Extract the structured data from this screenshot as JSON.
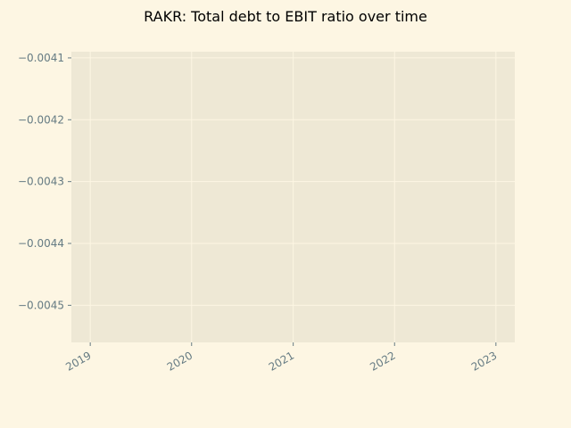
{
  "chart_data": {
    "type": "line",
    "title": "RAKR: Total debt to EBIT ratio over time",
    "xlabel": "",
    "ylabel": "",
    "x_ticks": [
      "2019",
      "2020",
      "2021",
      "2022",
      "2023"
    ],
    "y_ticks": [
      "−0.0041",
      "−0.0042",
      "−0.0043",
      "−0.0044",
      "−0.0045"
    ],
    "y_tick_values": [
      -0.0041,
      -0.0042,
      -0.0043,
      -0.0044,
      -0.0045
    ],
    "ylim": [
      -0.00456,
      -0.00409
    ],
    "xlim": [
      "2018-10-25",
      "2023-03-10"
    ],
    "series": [],
    "grid": true,
    "colors": {
      "background": "#fdf6e3",
      "plot_area": "#eee8d5",
      "grid": "#fdf6e3",
      "tick_text": "#657b83",
      "title_text": "#000000"
    }
  }
}
